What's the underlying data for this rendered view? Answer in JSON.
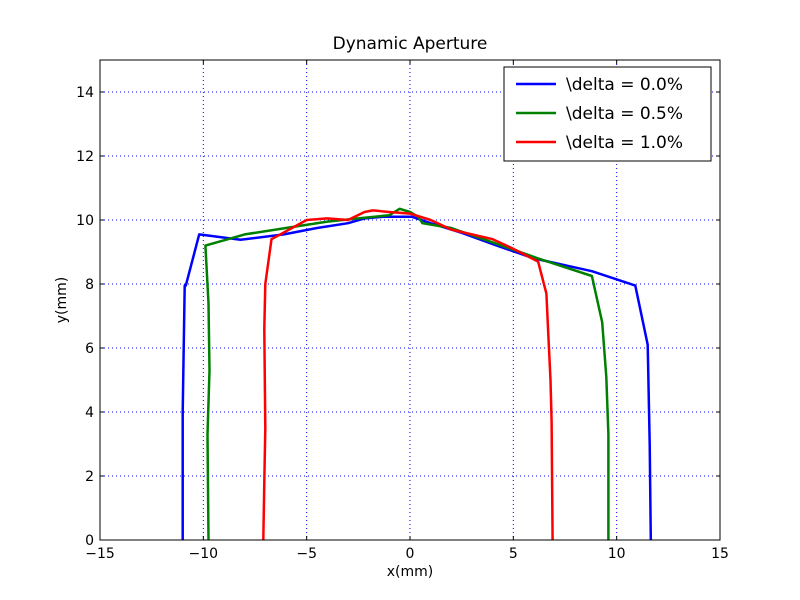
{
  "chart_data": {
    "type": "line",
    "title": "Dynamic Aperture",
    "xlabel": "x(mm)",
    "ylabel": "y(mm)",
    "xlim": [
      -15,
      15
    ],
    "ylim": [
      0,
      15
    ],
    "xticks": [
      -15,
      -10,
      -5,
      0,
      5,
      10,
      15
    ],
    "yticks": [
      0,
      2,
      4,
      6,
      8,
      10,
      12,
      14
    ],
    "grid": true,
    "legend_position": "top-right",
    "series": [
      {
        "name": "\\delta = 0.0%",
        "color": "#0000ff",
        "x": [
          -11.0,
          -11.0,
          -10.95,
          -10.9,
          -10.85,
          -10.2,
          -8.2,
          -6.1,
          -4.5,
          -3.0,
          -2.2,
          -1.3,
          0.1,
          1.0,
          2.5,
          4.2,
          6.0,
          8.8,
          10.9,
          11.5,
          11.6,
          11.65
        ],
        "y": [
          0.0,
          4.0,
          6.0,
          7.95,
          7.95,
          9.55,
          9.38,
          9.55,
          9.75,
          9.9,
          10.05,
          10.1,
          10.1,
          9.9,
          9.6,
          9.2,
          8.8,
          8.4,
          7.95,
          6.1,
          3.0,
          0.0
        ]
      },
      {
        "name": "\\delta = 0.5%",
        "color": "#008000",
        "x": [
          -9.75,
          -9.8,
          -9.7,
          -9.75,
          -9.9,
          -8.0,
          -6.0,
          -4.0,
          -2.5,
          -1.0,
          -0.5,
          0.0,
          0.4,
          0.6,
          2.0,
          4.0,
          6.2,
          8.8,
          9.3,
          9.5,
          9.6,
          9.6
        ],
        "y": [
          0.0,
          3.3,
          5.3,
          7.4,
          9.2,
          9.55,
          9.75,
          9.95,
          10.05,
          10.15,
          10.35,
          10.25,
          10.1,
          9.9,
          9.75,
          9.3,
          8.8,
          8.25,
          6.8,
          5.1,
          3.3,
          0.0
        ]
      },
      {
        "name": "\\delta = 1.0%",
        "color": "#ff0000",
        "x": [
          -7.1,
          -7.05,
          -7.0,
          -7.05,
          -7.0,
          -6.7,
          -5.0,
          -4.0,
          -3.0,
          -2.2,
          -1.8,
          -1.0,
          0.0,
          1.0,
          2.0,
          4.0,
          5.0,
          6.2,
          6.6,
          6.7,
          6.8,
          6.85,
          6.9
        ],
        "y": [
          0.0,
          1.8,
          3.5,
          6.6,
          8.0,
          9.4,
          10.0,
          10.05,
          10.0,
          10.25,
          10.3,
          10.25,
          10.2,
          10.0,
          9.7,
          9.4,
          9.1,
          8.7,
          7.7,
          6.3,
          5.0,
          3.7,
          0.0
        ]
      }
    ]
  }
}
